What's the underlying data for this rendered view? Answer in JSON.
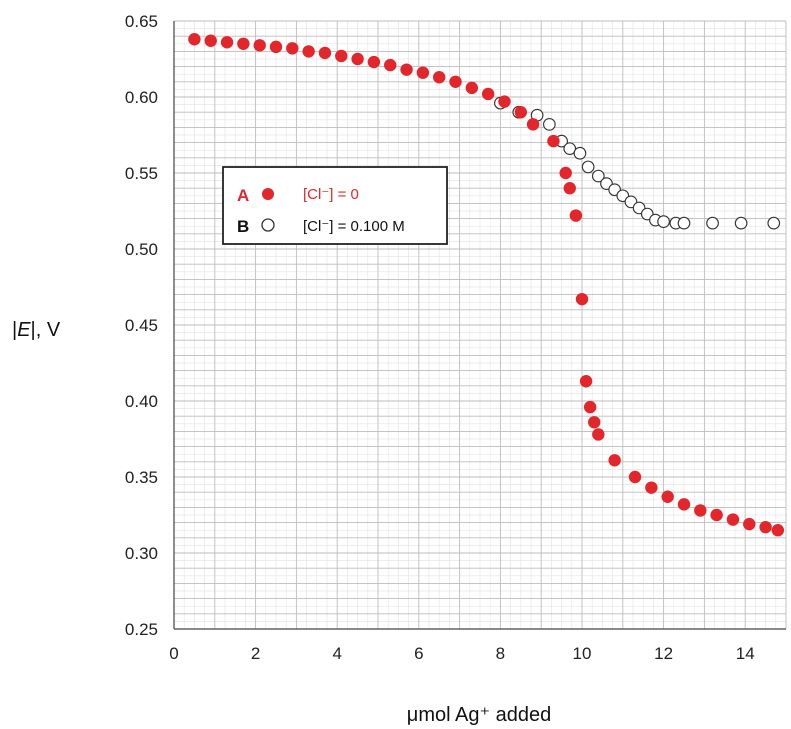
{
  "colors": {
    "series_a": "#e3262b",
    "series_b_stroke": "#333333",
    "grid_major": "#bdbdbd",
    "grid_minor": "#e6e6e6",
    "legend_border": "#222222"
  },
  "chart_data": {
    "type": "scatter",
    "xlabel": "μmol Ag⁺ added",
    "ylabel_prefix": "|",
    "ylabel_italic": "E",
    "ylabel_suffix": "|, V",
    "xlim": [
      0,
      15
    ],
    "ylim": [
      0.25,
      0.65
    ],
    "x_ticks": [
      0,
      2,
      4,
      6,
      8,
      10,
      12,
      14
    ],
    "x_tick_labels": [
      "0",
      "2",
      "4",
      "6",
      "8",
      "10",
      "12",
      "14"
    ],
    "y_ticks": [
      0.25,
      0.3,
      0.35,
      0.4,
      0.45,
      0.5,
      0.55,
      0.6,
      0.65
    ],
    "y_tick_labels": [
      "0.25",
      "0.30",
      "0.35",
      "0.40",
      "0.45",
      "0.50",
      "0.55",
      "0.60",
      "0.65"
    ],
    "grid": true,
    "legend_position": "upper-left",
    "series": [
      {
        "key": "A",
        "name": "[Cl⁻] = 0",
        "marker": "filled-circle",
        "x": [
          0.5,
          0.9,
          1.3,
          1.7,
          2.1,
          2.5,
          2.9,
          3.3,
          3.7,
          4.1,
          4.5,
          4.9,
          5.3,
          5.7,
          6.1,
          6.5,
          6.9,
          7.3,
          7.7,
          8.1,
          8.5,
          8.8,
          9.3,
          9.6,
          9.7,
          9.85,
          10.0,
          10.1,
          10.2,
          10.3,
          10.4,
          10.8,
          11.3,
          11.7,
          12.1,
          12.5,
          12.9,
          13.3,
          13.7,
          14.1,
          14.5,
          14.8
        ],
        "y": [
          0.638,
          0.637,
          0.636,
          0.635,
          0.634,
          0.633,
          0.632,
          0.63,
          0.629,
          0.627,
          0.625,
          0.623,
          0.621,
          0.618,
          0.616,
          0.613,
          0.61,
          0.606,
          0.602,
          0.597,
          0.59,
          0.582,
          0.571,
          0.55,
          0.54,
          0.522,
          0.467,
          0.413,
          0.396,
          0.386,
          0.378,
          0.361,
          0.35,
          0.343,
          0.337,
          0.332,
          0.328,
          0.325,
          0.322,
          0.319,
          0.317,
          0.315
        ]
      },
      {
        "key": "B",
        "name": "[Cl⁻] = 0.100 M",
        "marker": "open-circle",
        "x": [
          8.0,
          8.45,
          8.9,
          9.2,
          9.5,
          9.7,
          9.95,
          10.15,
          10.4,
          10.6,
          10.8,
          11.0,
          11.2,
          11.4,
          11.6,
          11.8,
          12.0,
          12.3,
          12.5,
          13.2,
          13.9,
          14.7
        ],
        "y": [
          0.596,
          0.59,
          0.588,
          0.582,
          0.571,
          0.566,
          0.563,
          0.554,
          0.548,
          0.543,
          0.539,
          0.535,
          0.531,
          0.527,
          0.523,
          0.519,
          0.518,
          0.517,
          0.517,
          0.517,
          0.517,
          0.517
        ]
      }
    ]
  }
}
